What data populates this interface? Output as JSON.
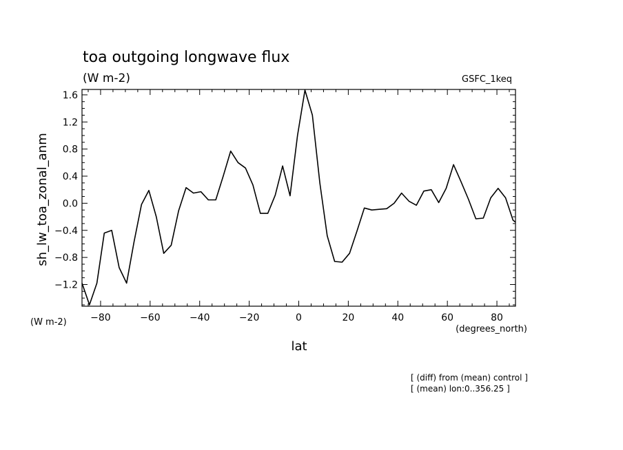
{
  "chart_data": {
    "type": "line",
    "title": "toa outgoing longwave flux",
    "units_label": "(W m-2)",
    "model_label": "GSFC_1keq",
    "ylabel": "sh_lw_toa_zonal_anm",
    "yunits_label": "(W m-2)",
    "xlabel": "lat",
    "xunits_label": "(degrees_north)",
    "xlim": [
      -87.5,
      87.5
    ],
    "ylim": [
      -1.52,
      1.68
    ],
    "xticks": [
      -80,
      -60,
      -40,
      -20,
      0,
      20,
      40,
      60,
      80
    ],
    "xtick_labels": [
      "−80",
      "−60",
      "−40",
      "−20",
      "0",
      "20",
      "40",
      "60",
      "80"
    ],
    "yticks": [
      -1.2,
      -0.8,
      -0.4,
      0.0,
      0.4,
      0.8,
      1.2,
      1.6
    ],
    "ytick_labels": [
      "−1.2",
      "−0.8",
      "−0.4",
      "0.0",
      "0.4",
      "0.8",
      "1.2",
      "1.6"
    ],
    "footnote_1": "[ (diff) from (mean) control ]",
    "footnote_2": "[ (mean) lon:0..356.25 ]",
    "series": [
      {
        "name": "sh_lw_toa_zonal_anm",
        "x": [
          -87.5,
          -84.5,
          -81.5,
          -78.5,
          -75.5,
          -72.5,
          -69.5,
          -66.5,
          -63.5,
          -60.5,
          -57.5,
          -54.5,
          -51.5,
          -48.5,
          -45.5,
          -42.5,
          -39.5,
          -36.5,
          -33.5,
          -30.5,
          -27.5,
          -24.5,
          -21.5,
          -18.5,
          -15.5,
          -12.5,
          -9.5,
          -6.5,
          -3.5,
          -0.5,
          2.5,
          5.5,
          8.5,
          11.5,
          14.5,
          17.5,
          20.5,
          23.5,
          26.5,
          29.5,
          32.5,
          35.5,
          38.5,
          41.5,
          44.5,
          47.5,
          50.5,
          53.5,
          56.5,
          59.5,
          62.5,
          65.5,
          68.5,
          71.5,
          74.5,
          77.5,
          80.5,
          83.5,
          86.5,
          87.5
        ],
        "y": [
          -1.18,
          -1.5,
          -1.18,
          -0.44,
          -0.4,
          -0.95,
          -1.18,
          -0.57,
          -0.02,
          0.19,
          -0.2,
          -0.74,
          -0.62,
          -0.11,
          0.23,
          0.15,
          0.17,
          0.05,
          0.05,
          0.4,
          0.77,
          0.6,
          0.52,
          0.27,
          -0.15,
          -0.15,
          0.12,
          0.55,
          0.11,
          1.0,
          1.67,
          1.3,
          0.3,
          -0.48,
          -0.86,
          -0.87,
          -0.74,
          -0.41,
          -0.07,
          -0.1,
          -0.09,
          -0.08,
          0.0,
          0.15,
          0.03,
          -0.03,
          0.18,
          0.2,
          0.01,
          0.22,
          0.57,
          0.32,
          0.06,
          -0.23,
          -0.22,
          0.08,
          0.22,
          0.08,
          -0.25,
          -0.28
        ]
      }
    ]
  }
}
